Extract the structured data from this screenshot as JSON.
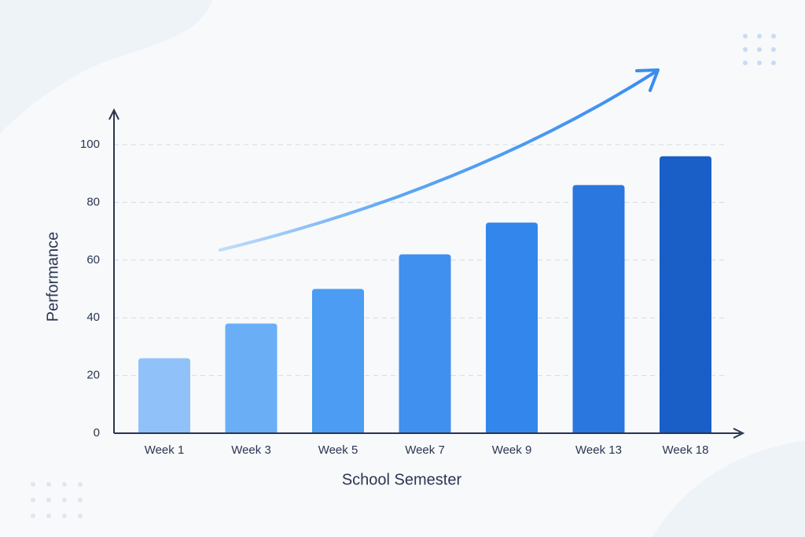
{
  "chart_data": {
    "type": "bar",
    "x_label": "School Semester",
    "y_label": "Performance",
    "categories": [
      "Week 1",
      "Week 3",
      "Week 5",
      "Week 7",
      "Week 9",
      "Week 13",
      "Week 18"
    ],
    "values": [
      26,
      38,
      50,
      62,
      73,
      86,
      96
    ],
    "colors": [
      "#90c2f9",
      "#6aaef6",
      "#4b9cf2",
      "#3f90ef",
      "#3386ec",
      "#2a77e0",
      "#1a5fc8"
    ],
    "ylim": [
      0,
      112
    ],
    "yticks": [
      0,
      20,
      40,
      60,
      80,
      100
    ],
    "grid": true
  }
}
